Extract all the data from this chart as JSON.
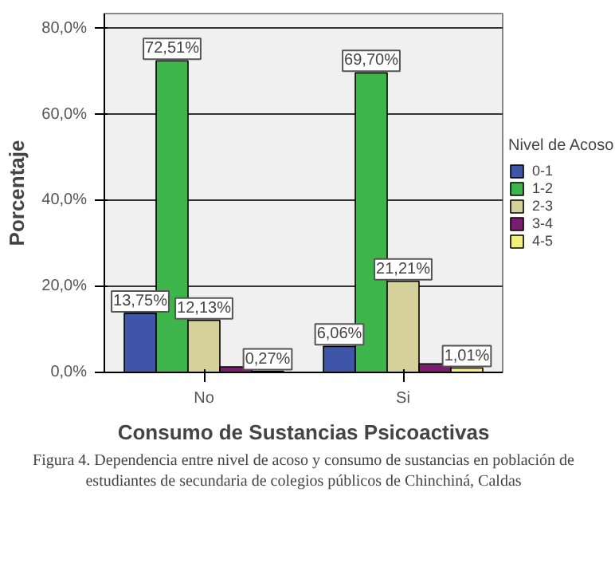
{
  "chart_data": {
    "type": "bar",
    "xlabel": "Consumo de Sustancias Psicoactivas",
    "ylabel": "Porcentaje",
    "legend_title": "Nivel de Acoso",
    "categories": [
      "No",
      "Si"
    ],
    "series": [
      {
        "name": "0-1",
        "color": "#3f55a8",
        "values": [
          13.75,
          6.06
        ],
        "value_labels": [
          "13,75%",
          "6,06%"
        ]
      },
      {
        "name": "1-2",
        "color": "#3db54a",
        "values": [
          72.51,
          69.7
        ],
        "value_labels": [
          "72,51%",
          "69,70%"
        ]
      },
      {
        "name": "2-3",
        "color": "#d6d19b",
        "values": [
          12.13,
          21.21
        ],
        "value_labels": [
          "12,13%",
          "21,21%"
        ]
      },
      {
        "name": "3-4",
        "color": "#7a1d6e",
        "values": [
          1.3,
          2.0
        ],
        "value_labels": [
          null,
          null
        ]
      },
      {
        "name": "4-5",
        "color": "#f3ef7c",
        "values": [
          0.27,
          1.01
        ],
        "value_labels": [
          "0,27%",
          "1,01%"
        ]
      }
    ],
    "ylim": [
      0,
      83.5
    ],
    "yticks": [
      {
        "value": 0,
        "label": "0,0%"
      },
      {
        "value": 20,
        "label": "20,0%"
      },
      {
        "value": 40,
        "label": "40,0%"
      },
      {
        "value": 60,
        "label": "60,0%"
      },
      {
        "value": 80,
        "label": "80,0%"
      }
    ],
    "grid": "y",
    "legend": "right",
    "annotations": [
      "Figura 4. Dependencia entre nivel de acoso y consumo de sustancias en población de estudiantes de secundaria de colegios públicos de Chinchiná, Caldas"
    ]
  }
}
